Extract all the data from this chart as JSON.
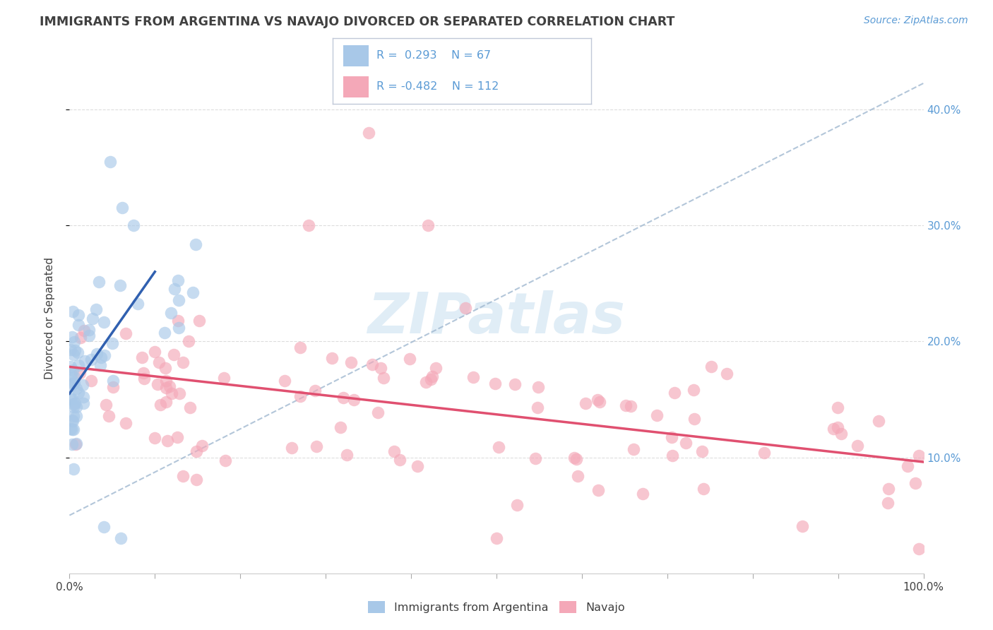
{
  "title": "IMMIGRANTS FROM ARGENTINA VS NAVAJO DIVORCED OR SEPARATED CORRELATION CHART",
  "source_text": "Source: ZipAtlas.com",
  "ylabel": "Divorced or Separated",
  "xlim": [
    0,
    1.0
  ],
  "ylim": [
    0,
    0.44
  ],
  "ytick_vals": [
    0.1,
    0.2,
    0.3,
    0.4
  ],
  "ytick_labels": [
    "10.0%",
    "20.0%",
    "30.0%",
    "40.0%"
  ],
  "color_blue": "#a8c8e8",
  "color_pink": "#f4a8b8",
  "color_blue_line": "#3060b0",
  "color_pink_line": "#e05070",
  "color_dashed": "#a0b8d0",
  "watermark_color": "#c8dff0",
  "legend_box_color": "#e8f0f8",
  "legend_r1": "R =  0.293",
  "legend_n1": "N = 67",
  "legend_r2": "R = -0.482",
  "legend_n2": "N = 112",
  "label_color": "#5b9bd5",
  "text_color": "#404040"
}
